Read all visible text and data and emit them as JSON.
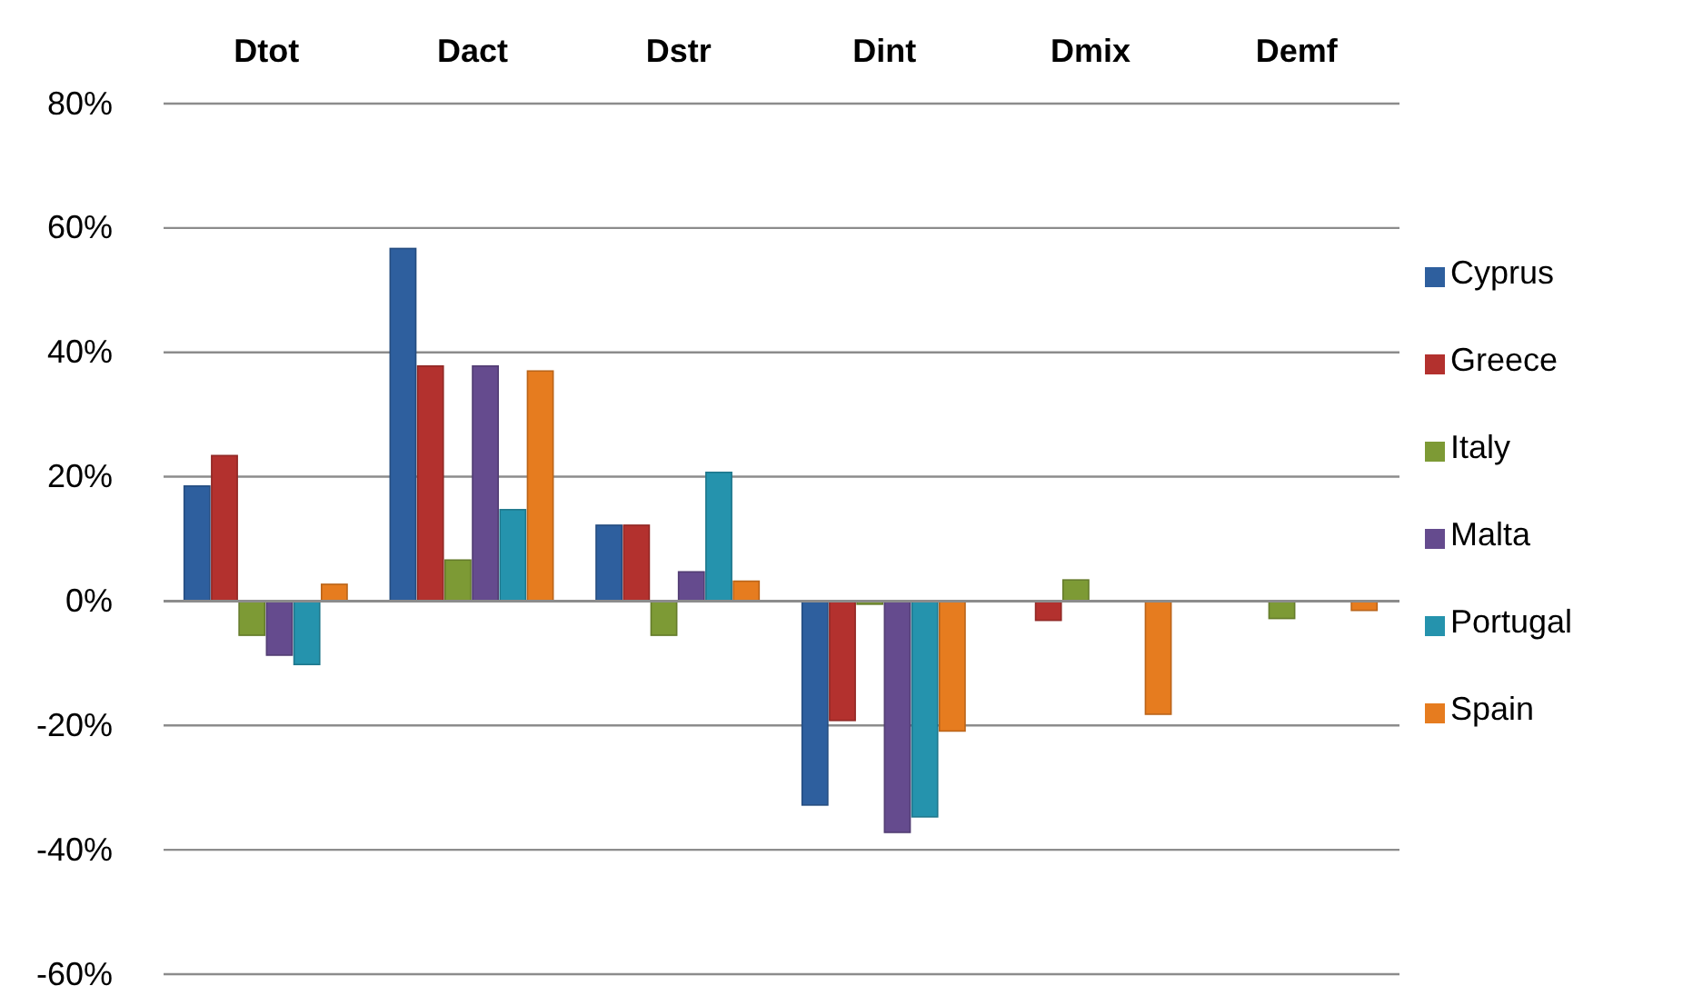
{
  "chart_data": {
    "type": "bar",
    "categories": [
      "Dtot",
      "Dact",
      "Dstr",
      "Dint",
      "Dmix",
      "Demf"
    ],
    "series": [
      {
        "name": "Cyprus",
        "color": "#2e5f9e",
        "values": [
          18.5,
          56.7,
          12.2,
          -32.8,
          0,
          0
        ]
      },
      {
        "name": "Greece",
        "color": "#b3312e",
        "values": [
          23.4,
          37.8,
          12.2,
          -19.2,
          -3.1,
          0
        ]
      },
      {
        "name": "Italy",
        "color": "#7d9a35",
        "values": [
          -5.5,
          6.6,
          -5.5,
          -0.5,
          3.4,
          -2.8
        ]
      },
      {
        "name": "Malta",
        "color": "#654b8e",
        "values": [
          -8.7,
          37.8,
          4.7,
          -37.2,
          0,
          0
        ]
      },
      {
        "name": "Portugal",
        "color": "#2593ad",
        "values": [
          -10.2,
          14.7,
          20.7,
          -34.7,
          0,
          0
        ]
      },
      {
        "name": "Spain",
        "color": "#e67c1f",
        "values": [
          2.7,
          37,
          3.2,
          -20.9,
          -18.2,
          -1.5
        ]
      }
    ],
    "ylim": [
      -60,
      80
    ],
    "yticks": [
      {
        "value": -60,
        "label": "-60%"
      },
      {
        "value": -40,
        "label": "-40%"
      },
      {
        "value": -20,
        "label": "-20%"
      },
      {
        "value": 0,
        "label": "0%"
      },
      {
        "value": 20,
        "label": "20%"
      },
      {
        "value": 40,
        "label": "40%"
      },
      {
        "value": 60,
        "label": "60%"
      },
      {
        "value": 80,
        "label": "80%"
      }
    ],
    "grid": "y",
    "legend": "right"
  }
}
